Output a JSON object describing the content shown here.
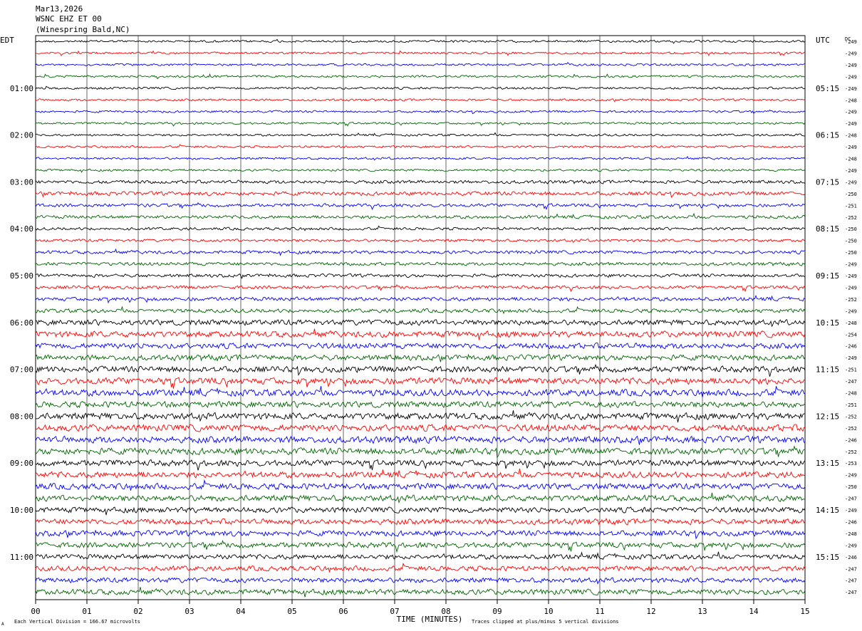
{
  "header": {
    "date": "Mar13,2026",
    "station": "WSNC EHZ ET 00",
    "location": "(Winespring Bald,NC)"
  },
  "left_zone_label": "EDT",
  "right_zone_label": "UTC",
  "dc_header": "DC",
  "footer": {
    "xlabel": "TIME (MINUTES)",
    "scale_note": "Each Vertical Division =  166.67 microvolts",
    "clip_note": "Traces clipped at plus/minus 5 vertical divisions",
    "corner_mark": "A"
  },
  "colors": {
    "trace_cycle": [
      "#000000",
      "#ff0000",
      "#0000ff",
      "#006400"
    ],
    "grid": "#000000"
  },
  "chart_data": {
    "type": "line",
    "xlabel": "TIME (MINUTES)",
    "xlim": [
      0,
      15
    ],
    "x_ticks": [
      "00",
      "01",
      "02",
      "03",
      "04",
      "05",
      "06",
      "07",
      "08",
      "09",
      "10",
      "11",
      "12",
      "13",
      "14",
      "15"
    ],
    "left_hour_labels": [
      "01:00",
      "02:00",
      "03:00",
      "04:00",
      "05:00",
      "06:00",
      "07:00",
      "08:00",
      "09:00",
      "10:00",
      "11:00"
    ],
    "right_hour_labels": [
      "05:15",
      "06:15",
      "07:15",
      "08:15",
      "09:15",
      "10:15",
      "11:15",
      "12:15",
      "13:15",
      "14:15",
      "15:15"
    ],
    "dc_values": [
      "249",
      "249",
      "249",
      "249",
      "249",
      "248",
      "249",
      "249",
      "248",
      "249",
      "248",
      "249",
      "249",
      "250",
      "251",
      "252",
      "250",
      "250",
      "250",
      "249",
      "249",
      "249",
      "252",
      "249",
      "248",
      "254",
      "246",
      "249",
      "251",
      "247",
      "248",
      "251",
      "252",
      "252",
      "246",
      "252",
      "253",
      "249",
      "250",
      "247",
      "249",
      "246",
      "248",
      "249",
      "246",
      "247",
      "247",
      "247"
    ],
    "trace_amplitudes": [
      0.2,
      0.2,
      0.2,
      0.2,
      0.2,
      0.2,
      0.2,
      0.2,
      0.2,
      0.2,
      0.2,
      0.2,
      0.3,
      0.35,
      0.3,
      0.3,
      0.25,
      0.25,
      0.3,
      0.3,
      0.3,
      0.3,
      0.35,
      0.35,
      0.5,
      0.55,
      0.5,
      0.5,
      0.55,
      0.6,
      0.6,
      0.55,
      0.6,
      0.6,
      0.6,
      0.6,
      0.55,
      0.55,
      0.55,
      0.55,
      0.5,
      0.5,
      0.5,
      0.5,
      0.45,
      0.45,
      0.45,
      0.5
    ],
    "clipped_at_divisions": 5
  }
}
